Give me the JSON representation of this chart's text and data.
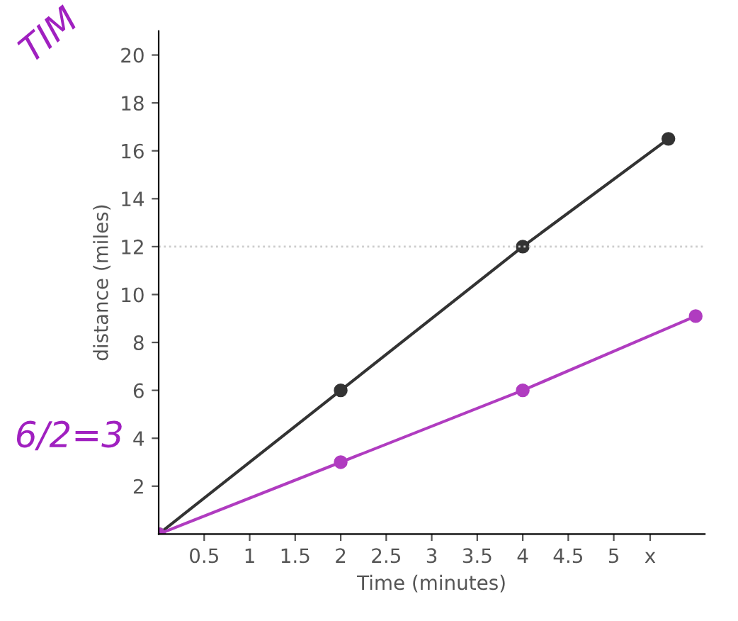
{
  "chart_data": {
    "type": "line",
    "xlabel": "Time (minutes)",
    "ylabel": "distance (miles)",
    "xlim": [
      0,
      6
    ],
    "ylim": [
      0,
      21
    ],
    "xticks": [
      0.5,
      1,
      1.5,
      2,
      2.5,
      3,
      3.5,
      4,
      4.5,
      5,
      {
        "value": 5.4,
        "label": "x"
      }
    ],
    "yticks": [
      2,
      4,
      6,
      8,
      10,
      12,
      14,
      16,
      18,
      20
    ],
    "grid": false,
    "marker": "circle",
    "line_style": "solid",
    "series": [
      {
        "color": "#333333",
        "x": [
          0,
          2,
          4,
          5.6
        ],
        "values": [
          0,
          6,
          12,
          16.5
        ]
      },
      {
        "color": "#b03cc0",
        "x": [
          0,
          2,
          4,
          5.9
        ],
        "values": [
          0,
          3,
          6,
          9.1
        ]
      }
    ],
    "ref_lines": [
      {
        "axis": "y",
        "value": 12,
        "color": "#cccccc",
        "line_style": "dotted"
      }
    ],
    "annotations": [
      "TIM",
      "6/2=3"
    ]
  }
}
